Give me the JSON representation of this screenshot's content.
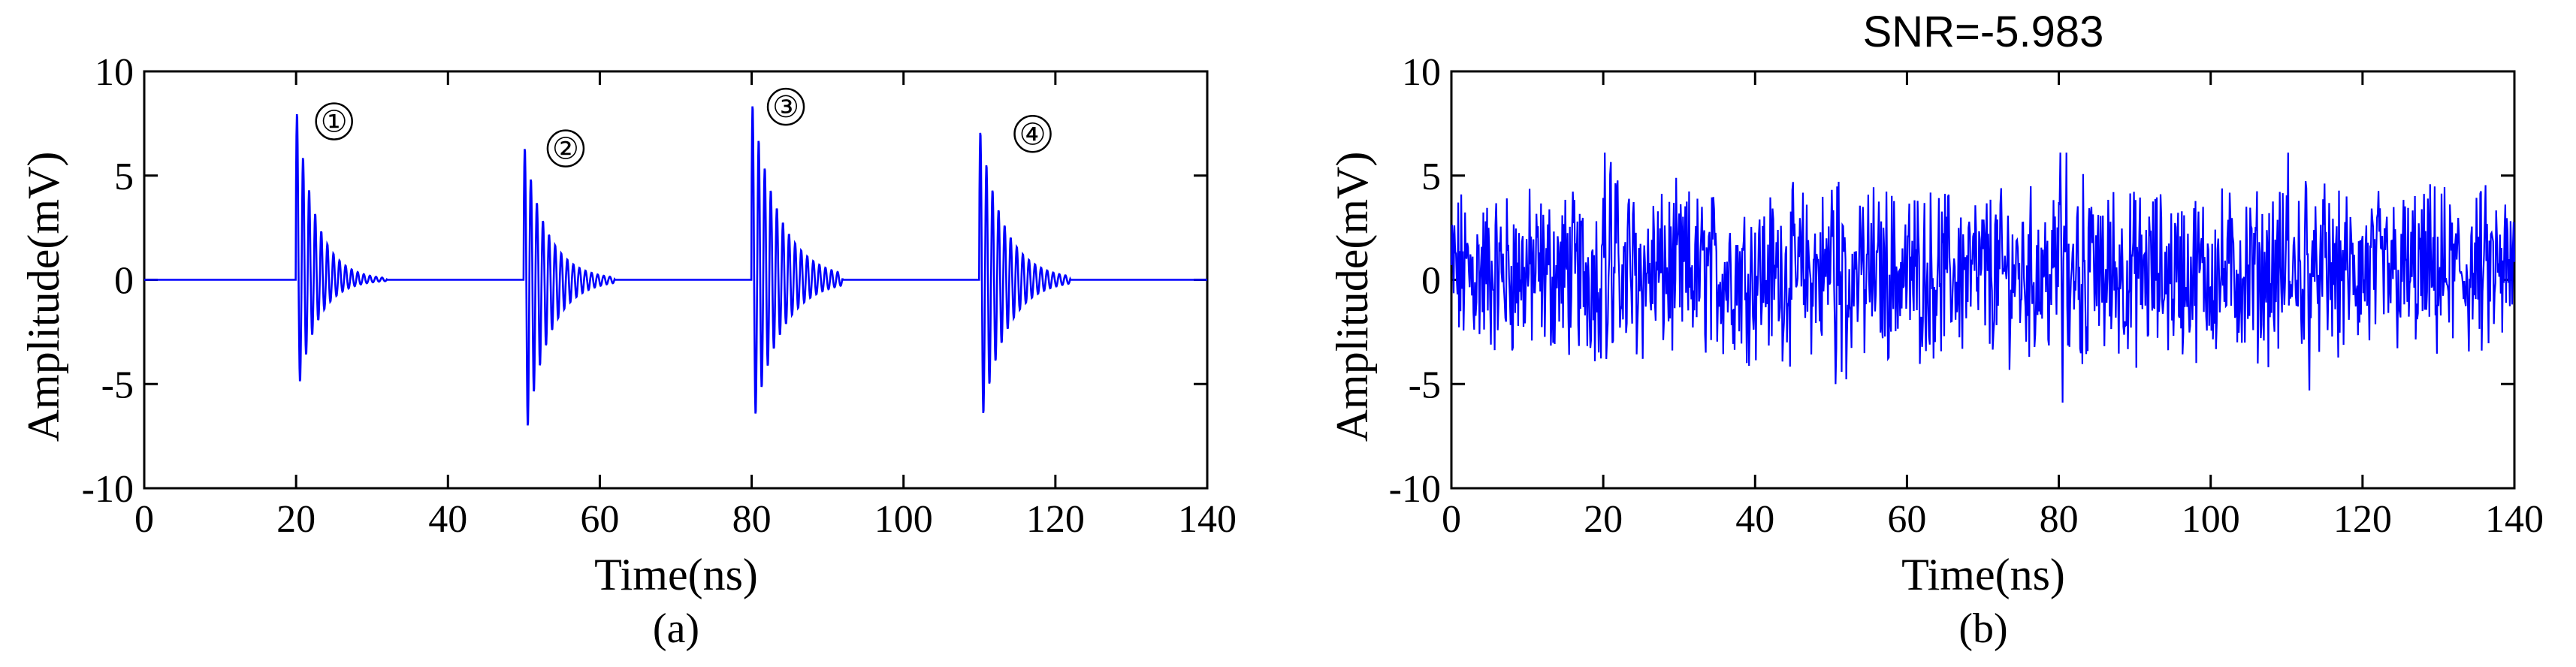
{
  "chart_data": [
    {
      "type": "line",
      "panel_label": "(a)",
      "title": "",
      "xlabel": "Time(ns)",
      "ylabel": "Amplitude(mV)",
      "xlim": [
        0,
        140
      ],
      "ylim": [
        -10,
        10
      ],
      "xticks": [
        0,
        20,
        40,
        60,
        80,
        100,
        120,
        140
      ],
      "yticks": [
        -10,
        -5,
        0,
        5,
        10
      ],
      "grid": false,
      "line_color": "#0000ff",
      "pulses": [
        {
          "t0": 20,
          "peak": 8.4,
          "trough": -6.0,
          "decay_ns": 2.6,
          "freq_ghz": 1.0,
          "label": "①",
          "label_x": 25,
          "label_y": 7.6
        },
        {
          "t0": 50,
          "peak": 6.6,
          "trough": -8.4,
          "decay_ns": 3.0,
          "freq_ghz": 1.0,
          "label": "②",
          "label_x": 55.5,
          "label_y": 6.3
        },
        {
          "t0": 80,
          "peak": 8.7,
          "trough": -7.5,
          "decay_ns": 3.6,
          "freq_ghz": 1.0,
          "label": "③",
          "label_x": 84.5,
          "label_y": 8.3
        },
        {
          "t0": 110,
          "peak": 7.4,
          "trough": -7.6,
          "decay_ns": 3.2,
          "freq_ghz": 1.0,
          "label": "④",
          "label_x": 117,
          "label_y": 7.0
        }
      ]
    },
    {
      "type": "line",
      "panel_label": "(b)",
      "title": "SNR=-5.983",
      "xlabel": "Time(ns)",
      "ylabel": "Amplitude(mV)",
      "xlim": [
        0,
        140
      ],
      "ylim": [
        -10,
        10
      ],
      "xticks": [
        0,
        20,
        40,
        60,
        80,
        100,
        120,
        140
      ],
      "yticks": [
        -10,
        -5,
        0,
        5,
        10
      ],
      "grid": false,
      "line_color": "#0000ff",
      "signal": "noisy signal of panel (a)",
      "approx_range": [
        -6.3,
        6.1
      ]
    }
  ]
}
